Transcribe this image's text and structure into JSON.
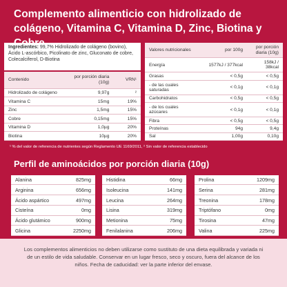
{
  "title": "Complemento alimenticio con hidrolizado de colágeno, Vitamina C, Vitamina D, Zinc, Biotina y Cobre",
  "ingredients": {
    "label": "Ingredientes:",
    "text": "99,7% Hidrolizado de colágeno (bovino), Ácido L-ascórbico, Picolinato de zinc, Gluconato de cobre, Colecalciferol, D-Biotina"
  },
  "content_table": {
    "headers": [
      "Contenido",
      "por porción diaria (10g)",
      "VRN¹"
    ],
    "rows": [
      [
        "Hidrolizado de colágeno",
        "9,97g",
        "²"
      ],
      [
        "Vitamina C",
        "15mg",
        "19%"
      ],
      [
        "Zinc",
        "1,5mg",
        "15%"
      ],
      [
        "Cobre",
        "0,15mg",
        "15%"
      ],
      [
        "Vitamina D",
        "1,0µg",
        "20%"
      ],
      [
        "Biotina",
        "10µg",
        "20%"
      ]
    ]
  },
  "nutrition_table": {
    "headers": [
      "Valores nutricionales",
      "por 100g",
      "por porción diaria (10g)"
    ],
    "rows": [
      [
        "Energía",
        "1577kJ / 377kcal",
        "158kJ / 38kcal"
      ],
      [
        "Grasas",
        "< 0,5g",
        "< 0,5g"
      ],
      [
        "- de las cuales saturadas",
        "< 0,1g",
        "< 0,1g"
      ],
      [
        "Carbohidratos",
        "< 0,5g",
        "< 0,5g"
      ],
      [
        "- de los cuales azúcares",
        "< 0,1g",
        "< 0,1g"
      ],
      [
        "Fibra",
        "< 0,5g",
        "< 0,5g"
      ],
      [
        "Proteínas",
        "94g",
        "9,4g"
      ],
      [
        "Sal",
        "1,00g",
        "0,10g"
      ]
    ]
  },
  "footnote": "¹ % del valor de referencia de nutrientes según Reglamento UE 1169/2011,  ² Sin valor de referencia establecido",
  "amino_section": {
    "title": "Perfil de aminoácidos por porción diaria (10g)",
    "columns": [
      [
        [
          "Alanina",
          "825mg"
        ],
        [
          "Arginina",
          "656mg"
        ],
        [
          "Ácido aspártico",
          "497mg"
        ],
        [
          "Cisteína",
          "0mg"
        ],
        [
          "Ácido glutámico",
          "900mg"
        ],
        [
          "Glicina",
          "2250mg"
        ]
      ],
      [
        [
          "Histidina",
          "66mg"
        ],
        [
          "Isoleucina",
          "141mg"
        ],
        [
          "Leucina",
          "264mg"
        ],
        [
          "Lisina",
          "319mg"
        ],
        [
          "Metionina",
          "75mg"
        ],
        [
          "Fenilalanina",
          "206mg"
        ]
      ],
      [
        [
          "Prolina",
          "1209mg"
        ],
        [
          "Serina",
          "281mg"
        ],
        [
          "Treonina",
          "178mg"
        ],
        [
          "Triptófano",
          "0mg"
        ],
        [
          "Tirosina",
          "47mg"
        ],
        [
          "Valina",
          "225mg"
        ]
      ]
    ]
  },
  "disclaimer": "Los complementos alimenticios no deben utilizarse como sustituto de una dieta equilibrada y variada ni de un estilo de vida saludable. Conservar en un lugar fresco, seco y oscuro, fuera del alcance de los niños. Fecha de caducidad: ver la parte inferior del envase."
}
